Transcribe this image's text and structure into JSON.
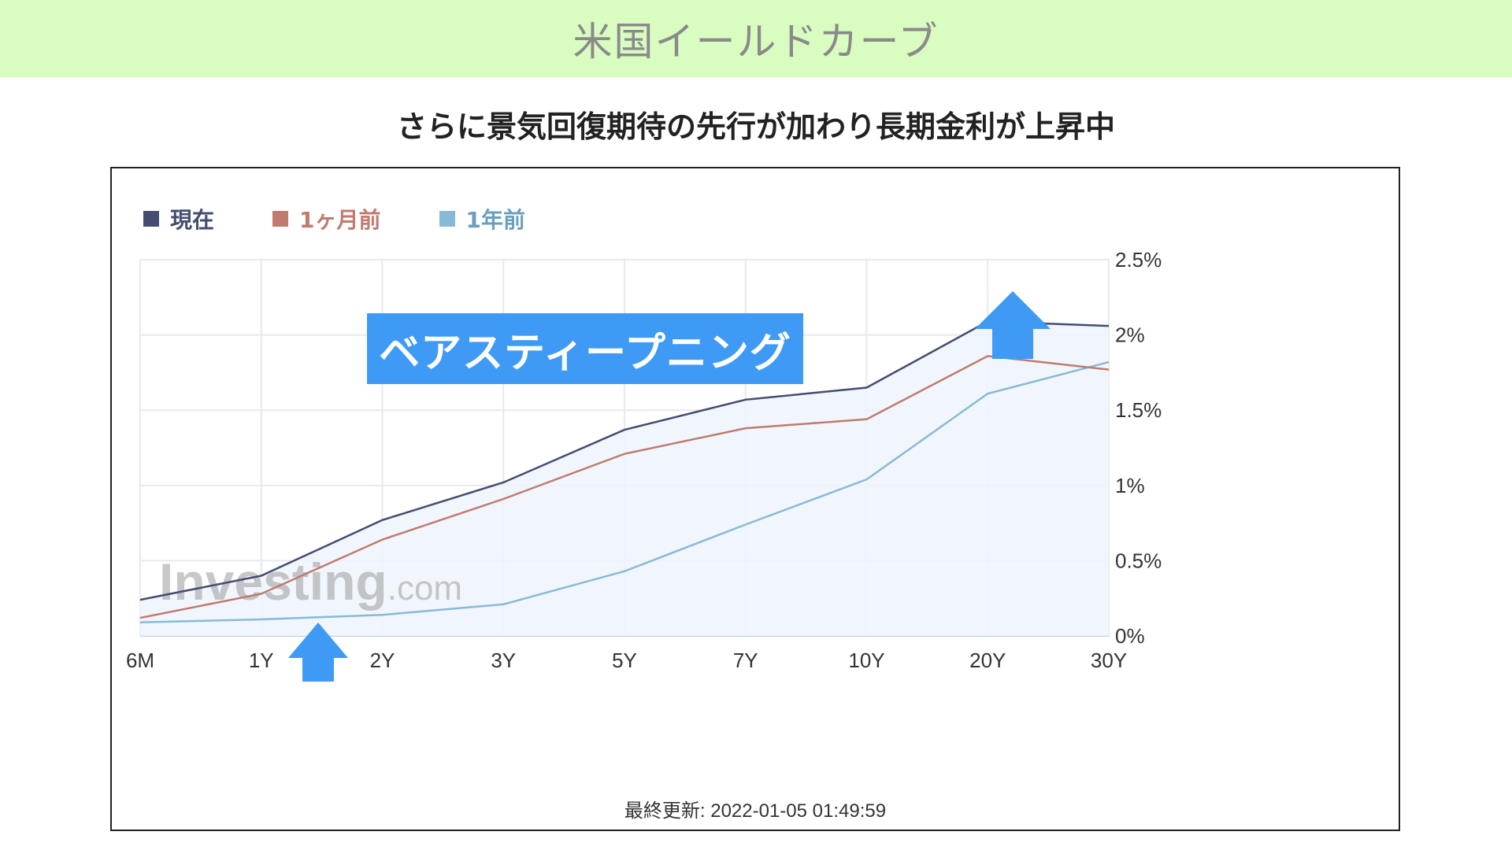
{
  "header": {
    "title": "米国イールドカーブ"
  },
  "subtitle": "さらに景気回復期待の先行が加わり長期金利が上昇中",
  "annotation": "ベアスティープニング",
  "watermark": {
    "brand": "Investing",
    "suffix": ".com"
  },
  "updated": "最終更新: 2022-01-05 01:49:59",
  "colors": {
    "current": "#454c70",
    "month_ago": "#c07a6f",
    "year_ago": "#88bad6",
    "accent": "#3f9af5",
    "banner": "#d9fcc0"
  },
  "chart_data": {
    "type": "line",
    "categories": [
      "6M",
      "1Y",
      "2Y",
      "3Y",
      "5Y",
      "7Y",
      "10Y",
      "20Y",
      "30Y"
    ],
    "series": [
      {
        "name": "現在",
        "values": [
          0.24,
          0.4,
          0.77,
          1.02,
          1.37,
          1.57,
          1.65,
          2.09,
          2.06
        ]
      },
      {
        "name": "1ヶ月前",
        "values": [
          0.12,
          0.28,
          0.64,
          0.91,
          1.21,
          1.38,
          1.44,
          1.86,
          1.77
        ]
      },
      {
        "name": "1年前",
        "values": [
          0.09,
          0.11,
          0.14,
          0.21,
          0.43,
          0.74,
          1.04,
          1.61,
          1.82
        ]
      }
    ],
    "y_ticks": [
      "0%",
      "0.5%",
      "1%",
      "1.5%",
      "2%",
      "2.5%"
    ],
    "ylim": [
      0,
      2.5
    ],
    "legend_position": "top-left",
    "grid": true,
    "y_axis_side": "right"
  }
}
